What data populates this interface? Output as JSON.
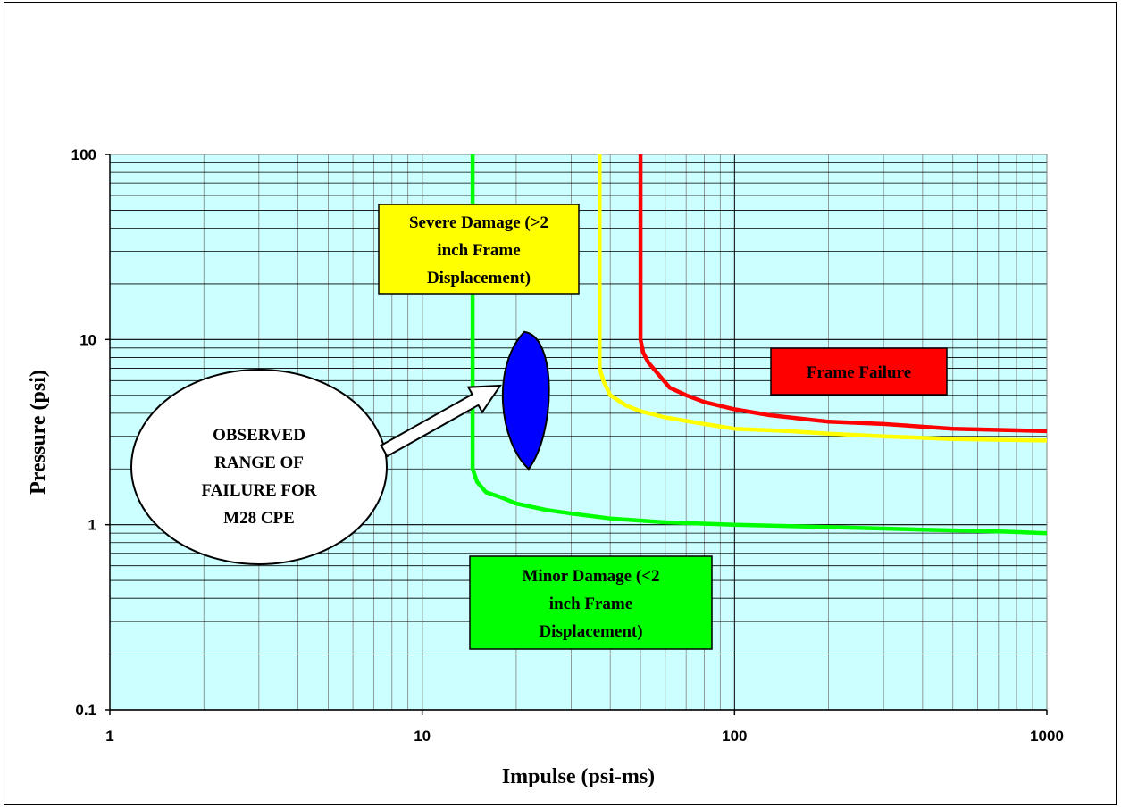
{
  "chart_data": {
    "type": "line",
    "title": "",
    "xlabel": "Impulse (psi-ms)",
    "ylabel": "Pressure (psi)",
    "xscale": "log",
    "yscale": "log",
    "xlim": [
      1,
      1000
    ],
    "ylim": [
      0.1,
      100
    ],
    "x_tick_labels": [
      "1",
      "10",
      "100",
      "1000"
    ],
    "y_tick_labels": [
      "0.1",
      "1",
      "10",
      "100"
    ],
    "grid": true,
    "plot_background": "#ccffff",
    "series": [
      {
        "color": "#00ff00",
        "points": [
          [
            14.5,
            100
          ],
          [
            14.5,
            2.0
          ],
          [
            15,
            1.7
          ],
          [
            16,
            1.5
          ],
          [
            18,
            1.4
          ],
          [
            20,
            1.3
          ],
          [
            25,
            1.2
          ],
          [
            30,
            1.15
          ],
          [
            40,
            1.08
          ],
          [
            60,
            1.03
          ],
          [
            100,
            1.0
          ],
          [
            200,
            0.97
          ],
          [
            400,
            0.94
          ],
          [
            700,
            0.92
          ],
          [
            1000,
            0.9
          ]
        ]
      },
      {
        "color": "#ffff00",
        "points": [
          [
            37,
            100
          ],
          [
            37,
            7.0
          ],
          [
            38,
            6.0
          ],
          [
            40,
            5.0
          ],
          [
            45,
            4.4
          ],
          [
            50,
            4.1
          ],
          [
            60,
            3.8
          ],
          [
            80,
            3.5
          ],
          [
            100,
            3.3
          ],
          [
            150,
            3.2
          ],
          [
            200,
            3.1
          ],
          [
            300,
            3.0
          ],
          [
            500,
            2.9
          ],
          [
            1000,
            2.85
          ]
        ]
      },
      {
        "color": "#ff0000",
        "points": [
          [
            50,
            100
          ],
          [
            50,
            10
          ],
          [
            51,
            8.5
          ],
          [
            53,
            7.5
          ],
          [
            57,
            6.5
          ],
          [
            62,
            5.5
          ],
          [
            70,
            5.0
          ],
          [
            80,
            4.6
          ],
          [
            100,
            4.2
          ],
          [
            130,
            3.9
          ],
          [
            200,
            3.6
          ],
          [
            300,
            3.5
          ],
          [
            500,
            3.3
          ],
          [
            1000,
            3.2
          ]
        ]
      }
    ],
    "observed_region": {
      "color": "#0000ff",
      "x_range": [
        18,
        25
      ],
      "y_range": [
        2.0,
        11.0
      ]
    },
    "annotations": [
      {
        "name": "severe",
        "lines": [
          "Severe Damage (>2",
          "inch Frame",
          "Displacement)"
        ],
        "fill": "#ffff00"
      },
      {
        "name": "frame-failure",
        "lines": [
          "Frame Failure"
        ],
        "fill": "#ff0000"
      },
      {
        "name": "minor",
        "lines": [
          "Minor Damage (<2",
          "inch Frame",
          "Displacement)"
        ],
        "fill": "#00ff00"
      },
      {
        "name": "observed",
        "lines": [
          "OBSERVED",
          "RANGE OF",
          "FAILURE FOR",
          "M28 CPE"
        ],
        "fill": "#ffffff"
      }
    ]
  }
}
